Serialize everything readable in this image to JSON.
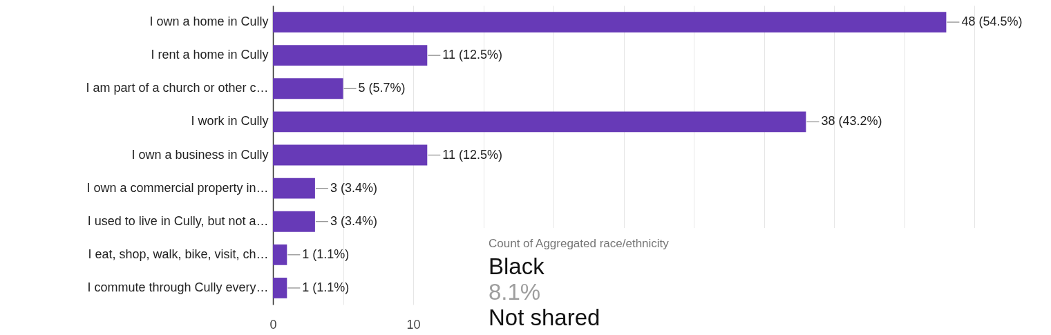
{
  "chart_data": [
    {
      "type": "bar",
      "orientation": "horizontal",
      "categories": [
        "I own a home in Cully",
        "I rent a home in Cully",
        "I am part of a church or other c…",
        "I work in Cully",
        "I own a business in Cully",
        "I own a commercial property in…",
        "I used to live in Cully, but not a…",
        "I eat, shop, walk, bike, visit, ch…",
        "I commute through Cully every…"
      ],
      "values": [
        48,
        11,
        5,
        38,
        11,
        3,
        3,
        1,
        1
      ],
      "value_labels": [
        "48 (54.5%)",
        "11 (12.5%)",
        "5 (5.7%)",
        "38 (43.2%)",
        "11 (12.5%)",
        "3 (3.4%)",
        "3 (3.4%)",
        "1 (1.1%)",
        "1 (1.1%)"
      ],
      "color": "#673ab7",
      "xlim": [
        0,
        50
      ],
      "xticks": [
        0,
        {
          "value": 5,
          "label": null
        },
        10,
        {
          "value": 15,
          "label": null
        },
        {
          "value": 20,
          "label": null
        },
        {
          "value": 25,
          "label": null
        },
        {
          "value": 30,
          "label": null
        },
        {
          "value": 35,
          "label": null
        },
        {
          "value": 40,
          "label": null
        },
        {
          "value": 45,
          "label": null
        },
        {
          "value": 50,
          "label": null
        }
      ],
      "grid": "x"
    },
    {
      "type": "other",
      "title": "Count of Aggregated race/ethnicity",
      "annotations": [
        "Black",
        "8.1%",
        "Not shared"
      ]
    }
  ]
}
